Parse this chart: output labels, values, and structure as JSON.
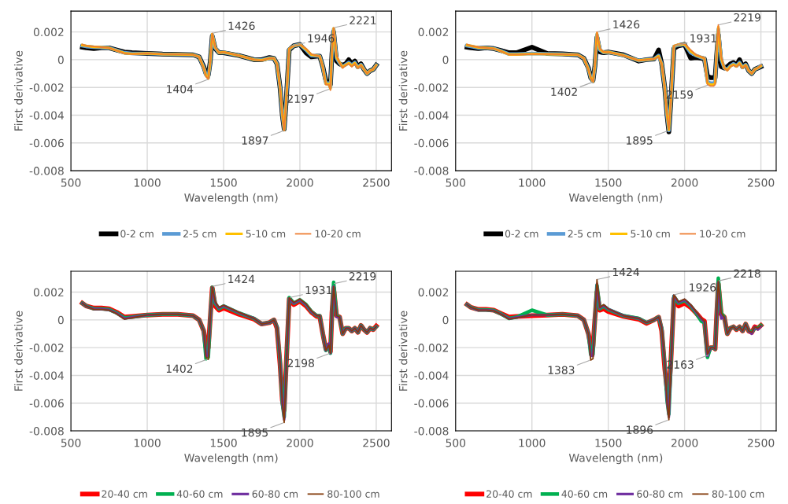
{
  "chart_data": [
    {
      "type": "line",
      "xlabel": "Wavelength (nm)",
      "ylabel": "First derivative",
      "xlim": [
        500,
        2600
      ],
      "xticks": [
        500,
        1000,
        1500,
        2000,
        2500
      ],
      "ylim": [
        -0.008,
        0.0035
      ],
      "yticks": [
        -0.008,
        -0.006,
        -0.004,
        -0.002,
        0,
        0.002
      ],
      "grid": true,
      "legend": "bottom",
      "x": [
        575,
        600,
        650,
        700,
        750,
        800,
        850,
        900,
        1000,
        1100,
        1200,
        1300,
        1340,
        1370,
        1385,
        1400,
        1412,
        1426,
        1445,
        1470,
        1500,
        1600,
        1700,
        1750,
        1800,
        1830,
        1850,
        1870,
        1885,
        1897,
        1910,
        1930,
        1960,
        2000,
        2040,
        2075,
        2110,
        2130,
        2150,
        2170,
        2190,
        2200,
        2210,
        2221,
        2240,
        2260,
        2280,
        2300,
        2320,
        2340,
        2360,
        2380,
        2400,
        2420,
        2440,
        2460,
        2480,
        2500
      ],
      "series": [
        {
          "name": "0-2 cm",
          "color": "#000000",
          "values": [
            0.0009,
            0.00085,
            0.0008,
            0.00085,
            0.00085,
            0.0007,
            0.00055,
            0.0005,
            0.00045,
            0.0004,
            0.00038,
            0.00035,
            0.0002,
            -0.0005,
            -0.001,
            -0.0011,
            -0.0002,
            0.0017,
            0.0008,
            0.0005,
            0.0005,
            0.0003,
            0.0,
            0.0,
            0.00015,
            0.0001,
            -0.0003,
            -0.002,
            -0.004,
            -0.005,
            -0.003,
            0.0007,
            0.001,
            0.0011,
            0.0005,
            0.0002,
            0.00025,
            0.00025,
            -0.0005,
            -0.0015,
            -0.0016,
            -0.0018,
            0.0004,
            0.002,
            -0.0001,
            -0.0003,
            -0.0004,
            -0.0003,
            0.0,
            -0.0003,
            -0.0001,
            -0.0005,
            -0.0003,
            -0.0007,
            -0.001,
            -0.0008,
            -0.0007,
            -0.0004
          ]
        },
        {
          "name": "2-5 cm",
          "color": "#5b9bd5",
          "values": [
            0.001,
            0.00095,
            0.0009,
            0.00088,
            0.00085,
            0.00068,
            0.0005,
            0.00045,
            0.00045,
            0.0004,
            0.00038,
            0.00035,
            0.0002,
            -0.00055,
            -0.0011,
            -0.0013,
            -0.0002,
            0.0018,
            0.00085,
            0.0005,
            0.00052,
            0.0003,
            0.0,
            -2e-05,
            0.00012,
            0.0001,
            -0.0003,
            -0.002,
            -0.004,
            -0.005,
            -0.003,
            0.00075,
            0.001,
            0.0011,
            0.0007,
            0.0003,
            0.00028,
            0.00025,
            -0.0005,
            -0.0017,
            -0.0017,
            -0.002,
            0.00045,
            0.0022,
            0.0001,
            -0.00025,
            -0.0005,
            -0.00035,
            -0.0002,
            -0.0004,
            -0.0002,
            -0.00055,
            -0.00035,
            -0.0007,
            -0.001,
            -0.0008,
            -0.0007,
            -0.0004
          ]
        },
        {
          "name": "5-10 cm",
          "color": "#ffc000",
          "values": [
            0.00105,
            0.001,
            0.00092,
            0.0009,
            0.00085,
            0.00066,
            0.00047,
            0.00042,
            0.00045,
            0.0004,
            0.00038,
            0.00035,
            0.0002,
            -0.00058,
            -0.00115,
            -0.00135,
            -0.0002,
            0.00185,
            0.00088,
            0.0005,
            0.00054,
            0.0003,
            0.0,
            -4e-05,
            0.0001,
            0.0001,
            -0.0003,
            -0.002,
            -0.004,
            -0.00505,
            -0.003,
            0.00078,
            0.001,
            0.0011,
            0.00075,
            0.00035,
            0.00029,
            0.00025,
            -0.0005,
            -0.00175,
            -0.00175,
            -0.0021,
            0.00048,
            0.00225,
            0.0002,
            -0.0002,
            -0.00055,
            -0.00038,
            -0.00025,
            -0.00045,
            -0.00025,
            -0.00058,
            -0.00038,
            -0.0007,
            -0.001,
            -0.0008,
            -0.0007,
            -0.0004
          ]
        },
        {
          "name": "10-20 cm",
          "color": "#ed7d31",
          "values": [
            0.0011,
            0.001,
            0.00095,
            0.0009,
            0.00085,
            0.00065,
            0.00045,
            0.0004,
            0.00045,
            0.0004,
            0.00038,
            0.00035,
            0.0002,
            -0.0006,
            -0.0012,
            -0.0014,
            -0.0002,
            0.0019,
            0.0009,
            0.0005,
            0.00055,
            0.0003,
            0.0,
            -5e-05,
            0.0001,
            0.0001,
            -0.0003,
            -0.002,
            -0.004,
            -0.0051,
            -0.003,
            0.0008,
            0.001,
            0.0011,
            0.0008,
            0.0004,
            0.0003,
            0.00025,
            -0.0005,
            -0.0018,
            -0.0018,
            -0.0022,
            0.0005,
            0.0023,
            0.0003,
            -0.0002,
            -0.0006,
            -0.0004,
            -0.0003,
            -0.0005,
            -0.0003,
            -0.0006,
            -0.0004,
            -0.0007,
            -0.001,
            -0.0008,
            -0.0007,
            -0.0004
          ]
        }
      ],
      "annotations": [
        {
          "text": "1426",
          "x": 1426,
          "y": 0.0019
        },
        {
          "text": "1404",
          "x": 1404,
          "y": -0.0014
        },
        {
          "text": "1897",
          "x": 1897,
          "y": -0.0051
        },
        {
          "text": "1946",
          "x": 1946,
          "y": 0.001
        },
        {
          "text": "2197",
          "x": 2197,
          "y": -0.0021
        },
        {
          "text": "2221",
          "x": 2221,
          "y": 0.0023
        }
      ]
    },
    {
      "type": "line",
      "xlabel": "Wavelength (nm)",
      "ylabel": "First derivative",
      "xlim": [
        500,
        2600
      ],
      "xticks": [
        500,
        1000,
        1500,
        2000,
        2500
      ],
      "ylim": [
        -0.008,
        0.0035
      ],
      "yticks": [
        -0.008,
        -0.006,
        -0.004,
        -0.002,
        0,
        0.002
      ],
      "grid": true,
      "legend": "bottom",
      "x": [
        575,
        600,
        650,
        700,
        750,
        800,
        850,
        900,
        1000,
        1100,
        1200,
        1300,
        1340,
        1370,
        1385,
        1400,
        1412,
        1426,
        1445,
        1470,
        1500,
        1600,
        1700,
        1750,
        1800,
        1830,
        1850,
        1870,
        1885,
        1897,
        1910,
        1930,
        1960,
        2000,
        2040,
        2075,
        2110,
        2130,
        2150,
        2170,
        2190,
        2200,
        2210,
        2221,
        2240,
        2260,
        2280,
        2300,
        2320,
        2340,
        2360,
        2380,
        2400,
        2420,
        2440,
        2460,
        2480,
        2500
      ],
      "series": [
        {
          "name": "0-2 cm",
          "color": "#000000",
          "values": [
            0.0009,
            0.00085,
            0.0008,
            0.00085,
            0.0008,
            0.00065,
            0.0005,
            0.0005,
            0.0009,
            0.00045,
            0.00042,
            0.00035,
            0.0001,
            -0.0006,
            -0.0013,
            -0.0015,
            -0.0005,
            0.0016,
            0.00055,
            0.0005,
            0.00055,
            0.00035,
            -0.0001,
            0.0,
            5e-05,
            0.0007,
            -0.0003,
            -0.002,
            -0.004,
            -0.0052,
            -0.003,
            0.0008,
            0.001,
            0.0011,
            0.0001,
            0.00015,
            0.0001,
            5e-05,
            -0.0012,
            -0.0013,
            -0.0013,
            -0.0013,
            0.0003,
            0.0018,
            -0.0005,
            -0.0006,
            -0.0005,
            -0.0003,
            -0.0002,
            -0.0004,
            0.0,
            -0.0005,
            -0.0003,
            -0.0008,
            -0.001,
            -0.0007,
            -0.0006,
            -0.0005
          ]
        },
        {
          "name": "2-5 cm",
          "color": "#5b9bd5",
          "values": [
            0.001,
            0.00095,
            0.00085,
            0.00085,
            0.0008,
            0.00062,
            0.0004,
            0.0004,
            0.00045,
            0.00042,
            0.0004,
            0.00035,
            0.0001,
            -0.00065,
            -0.0013,
            -0.00155,
            -0.0005,
            0.0018,
            0.0007,
            0.00052,
            0.00055,
            0.00032,
            -7e-05,
            0.0,
            5e-05,
            0.0003,
            -0.0003,
            -0.002,
            -0.004,
            -0.0051,
            -0.003,
            0.00095,
            0.00105,
            0.0011,
            0.0005,
            0.0003,
            0.00015,
            8e-05,
            -0.0016,
            -0.0017,
            -0.0017,
            -0.0016,
            0.0004,
            0.0022,
            0.0,
            -0.0006,
            -0.0007,
            -0.00045,
            -0.0003,
            -0.00045,
            -0.0002,
            -0.00055,
            -0.00035,
            -0.0008,
            -0.001,
            -0.0007,
            -0.0006,
            -0.00045
          ]
        },
        {
          "name": "5-10 cm",
          "color": "#ffc000",
          "values": [
            0.00105,
            0.001,
            0.00088,
            0.00085,
            0.0008,
            0.0006,
            0.00037,
            0.00037,
            0.00042,
            0.0004,
            0.00038,
            0.00035,
            0.0001,
            -0.00068,
            -0.0013,
            -0.00158,
            -0.0005,
            0.0019,
            0.00075,
            0.00054,
            0.00055,
            0.00031,
            -6e-05,
            0.0,
            5e-05,
            0.00025,
            -0.0003,
            -0.002,
            -0.004,
            -0.00505,
            -0.003,
            0.00098,
            0.00108,
            0.00112,
            0.0006,
            0.00032,
            0.00018,
            9e-05,
            -0.0017,
            -0.0018,
            -0.0018,
            -0.0017,
            0.00045,
            0.00235,
            0.0001,
            -0.0006,
            -0.00075,
            -0.00048,
            -0.00035,
            -0.00048,
            -0.00025,
            -0.00058,
            -0.00038,
            -0.0008,
            -0.001,
            -0.0007,
            -0.0006,
            -0.00045
          ]
        },
        {
          "name": "10-20 cm",
          "color": "#ed7d31",
          "values": [
            0.0011,
            0.001,
            0.0009,
            0.00085,
            0.0008,
            0.0006,
            0.00035,
            0.00035,
            0.0004,
            0.0004,
            0.00038,
            0.00035,
            0.0001,
            -0.0007,
            -0.0013,
            -0.0016,
            -0.0005,
            0.002,
            0.0008,
            0.00055,
            0.00055,
            0.0003,
            -5e-05,
            0.0,
            5e-05,
            0.0002,
            -0.0003,
            -0.002,
            -0.004,
            -0.005,
            -0.003,
            0.001,
            0.0011,
            0.00115,
            0.0007,
            0.00035,
            0.0002,
            0.0001,
            -0.0018,
            -0.0019,
            -0.0019,
            -0.0018,
            0.0005,
            0.0025,
            0.0002,
            -0.0006,
            -0.0008,
            -0.0005,
            -0.0004,
            -0.0005,
            -0.0003,
            -0.0006,
            -0.0004,
            -0.0008,
            -0.001,
            -0.0007,
            -0.0006,
            -0.0004
          ]
        }
      ],
      "annotations": [
        {
          "text": "1426",
          "x": 1426,
          "y": 0.002
        },
        {
          "text": "1402",
          "x": 1402,
          "y": -0.0016
        },
        {
          "text": "1895",
          "x": 1895,
          "y": -0.0051
        },
        {
          "text": "1931",
          "x": 1931,
          "y": 0.001
        },
        {
          "text": "2159",
          "x": 2159,
          "y": -0.0018
        },
        {
          "text": "2219",
          "x": 2219,
          "y": 0.0025
        }
      ]
    },
    {
      "type": "line",
      "xlabel": "Wavelength (nm)",
      "ylabel": "First derivative",
      "xlim": [
        500,
        2600
      ],
      "xticks": [
        500,
        1000,
        1500,
        2000,
        2500
      ],
      "ylim": [
        -0.008,
        0.0035
      ],
      "yticks": [
        -0.008,
        -0.006,
        -0.004,
        -0.002,
        0,
        0.002
      ],
      "grid": true,
      "legend": "bottom",
      "x": [
        575,
        600,
        650,
        700,
        750,
        800,
        850,
        900,
        1000,
        1100,
        1200,
        1300,
        1340,
        1370,
        1385,
        1400,
        1412,
        1426,
        1445,
        1470,
        1500,
        1600,
        1700,
        1750,
        1800,
        1830,
        1850,
        1870,
        1885,
        1897,
        1910,
        1930,
        1960,
        2000,
        2040,
        2075,
        2110,
        2130,
        2150,
        2170,
        2190,
        2200,
        2210,
        2221,
        2240,
        2260,
        2280,
        2300,
        2320,
        2340,
        2360,
        2380,
        2400,
        2420,
        2440,
        2460,
        2480,
        2500
      ],
      "series": [
        {
          "name": "20-40 cm",
          "color": "#ff0000",
          "values": [
            0.0012,
            0.001,
            0.00085,
            0.00085,
            0.0008,
            0.00055,
            0.0002,
            0.00025,
            0.00035,
            0.0004,
            0.0004,
            0.0003,
            0.0,
            -0.0008,
            -0.002,
            -0.002,
            0.0,
            0.0023,
            0.001,
            0.0007,
            0.00085,
            0.0004,
            5e-05,
            -0.0003,
            -0.0002,
            0.0,
            -0.0006,
            -0.0032,
            -0.0058,
            -0.0065,
            -0.0033,
            0.0015,
            0.0011,
            0.00135,
            0.001,
            0.00055,
            0.00025,
            0.00025,
            -0.001,
            -0.0021,
            -0.0018,
            -0.0023,
            0.0005,
            0.0023,
            0.0003,
            0.0002,
            -0.001,
            -0.0006,
            -0.0006,
            -0.0008,
            -0.0006,
            -0.0009,
            -0.0004,
            -0.0007,
            -0.0009,
            -0.0006,
            -0.0007,
            -0.00045
          ]
        },
        {
          "name": "40-60 cm",
          "color": "#00b050",
          "values": [
            0.0012,
            0.001,
            0.0008,
            0.0008,
            0.00075,
            0.0005,
            0.00015,
            0.0002,
            0.00035,
            0.0004,
            0.0004,
            0.0003,
            0.0,
            -0.0008,
            -0.0028,
            -0.0027,
            0.0,
            0.00235,
            0.0012,
            0.0008,
            0.001,
            0.0005,
            0.0001,
            -0.0003,
            -0.0002,
            0.0,
            -0.0005,
            -0.003,
            -0.006,
            -0.007,
            -0.0034,
            0.0016,
            0.0012,
            0.00145,
            0.0011,
            0.0006,
            0.0003,
            0.0003,
            -0.001,
            -0.0022,
            -0.0018,
            -0.0024,
            0.0005,
            0.0027,
            0.0003,
            0.0002,
            -0.001,
            -0.0006,
            -0.0006,
            -0.0008,
            -0.0006,
            -0.0009,
            -0.0004,
            -0.0007,
            -0.0009,
            -0.0006,
            -0.0007,
            -0.0005
          ]
        },
        {
          "name": "60-80 cm",
          "color": "#7030a0",
          "values": [
            0.0012,
            0.001,
            0.00078,
            0.00078,
            0.00072,
            0.00048,
            0.0001,
            0.00018,
            0.00035,
            0.0004,
            0.0004,
            0.0003,
            0.0,
            -0.0008,
            -0.0026,
            -0.0026,
            0.0,
            0.00235,
            0.00125,
            0.00085,
            0.00102,
            0.00052,
            0.0001,
            -0.0003,
            -0.0002,
            0.0,
            -0.0005,
            -0.003,
            -0.006,
            -0.0072,
            -0.00345,
            0.00155,
            0.0012,
            0.00145,
            0.0011,
            0.0006,
            0.0003,
            0.0003,
            -0.001,
            -0.0022,
            -0.0017,
            -0.0024,
            0.0005,
            0.0024,
            0.0002,
            0.0002,
            -0.001,
            -0.0006,
            -0.0006,
            -0.0008,
            -0.0006,
            -0.0009,
            -0.0004,
            -0.0007,
            -0.0009,
            -0.0006,
            -0.0007,
            -0.0005
          ]
        },
        {
          "name": "80-100 cm",
          "color": "#843c0c",
          "values": [
            0.0012,
            0.001,
            0.00075,
            0.00075,
            0.0007,
            0.00045,
            5e-05,
            0.00015,
            0.00035,
            0.0004,
            0.0004,
            0.0003,
            0.0,
            -0.0008,
            -0.0027,
            -0.00285,
            0.0,
            0.0024,
            0.0013,
            0.0009,
            0.00105,
            0.00055,
            0.0001,
            -0.0003,
            -0.0002,
            0.0,
            -0.0005,
            -0.003,
            -0.006,
            -0.0074,
            -0.0035,
            0.0016,
            0.00125,
            0.0015,
            0.00115,
            0.00065,
            0.0003,
            0.0003,
            -0.001,
            -0.0022,
            -0.0018,
            -0.0024,
            0.0005,
            0.0024,
            0.0003,
            0.0002,
            -0.001,
            -0.0006,
            -0.0006,
            -0.0008,
            -0.0006,
            -0.0009,
            -0.0004,
            -0.0007,
            -0.0009,
            -0.0006,
            -0.0007,
            -0.0005
          ]
        }
      ],
      "annotations": [
        {
          "text": "1424",
          "x": 1424,
          "y": 0.0024
        },
        {
          "text": "1402",
          "x": 1402,
          "y": -0.0028
        },
        {
          "text": "1895",
          "x": 1895,
          "y": -0.0074
        },
        {
          "text": "1931",
          "x": 1931,
          "y": 0.0016
        },
        {
          "text": "2198",
          "x": 2198,
          "y": -0.0024
        },
        {
          "text": "2219",
          "x": 2219,
          "y": 0.0026
        }
      ]
    },
    {
      "type": "line",
      "xlabel": "Wavelength (nm)",
      "ylabel": "First derivative",
      "xlim": [
        500,
        2600
      ],
      "xticks": [
        500,
        1000,
        1500,
        2000,
        2500
      ],
      "ylim": [
        -0.008,
        0.0035
      ],
      "yticks": [
        -0.008,
        -0.006,
        -0.004,
        -0.002,
        0,
        0.002
      ],
      "grid": true,
      "legend": "bottom",
      "x": [
        575,
        600,
        650,
        700,
        750,
        800,
        850,
        900,
        1000,
        1100,
        1200,
        1300,
        1340,
        1370,
        1385,
        1400,
        1412,
        1426,
        1445,
        1470,
        1500,
        1600,
        1700,
        1750,
        1800,
        1830,
        1850,
        1870,
        1885,
        1897,
        1910,
        1930,
        1960,
        2000,
        2040,
        2075,
        2110,
        2130,
        2150,
        2170,
        2190,
        2200,
        2210,
        2221,
        2240,
        2260,
        2280,
        2300,
        2320,
        2340,
        2360,
        2380,
        2400,
        2420,
        2440,
        2460,
        2480,
        2500
      ],
      "series": [
        {
          "name": "20-40 cm",
          "color": "#ff0000",
          "values": [
            0.0011,
            0.0009,
            0.00075,
            0.00075,
            0.0007,
            0.00045,
            0.0002,
            0.00025,
            0.0003,
            0.00035,
            0.0004,
            0.0003,
            0.0,
            -0.001,
            -0.0019,
            -0.0019,
            0.0,
            0.002,
            0.0007,
            0.0008,
            0.0006,
            0.00025,
            5e-05,
            -0.00025,
            0.0,
            0.0002,
            -0.0008,
            -0.0035,
            -0.005,
            -0.0053,
            -0.003,
            0.0015,
            0.001,
            0.0012,
            0.0009,
            0.0005,
            5e-05,
            -0.0001,
            -0.0024,
            -0.002,
            -0.002,
            -0.0021,
            0.0003,
            0.0026,
            0.0004,
            0.0002,
            -0.001,
            -0.0006,
            -0.0005,
            -0.0007,
            -0.0005,
            -0.0008,
            -0.0003,
            -0.0008,
            -0.0009,
            -0.0005,
            -0.0006,
            -0.0004
          ]
        },
        {
          "name": "40-60 cm",
          "color": "#00b050",
          "values": [
            0.0011,
            0.0009,
            0.00072,
            0.00072,
            0.00068,
            0.00042,
            0.0001,
            0.0002,
            0.0007,
            0.00035,
            0.0004,
            0.0003,
            0.0,
            -0.001,
            -0.0025,
            -0.0025,
            0.0,
            0.0025,
            0.0008,
            0.001,
            0.00075,
            0.0003,
            0.0001,
            -0.0002,
            0.0,
            0.0002,
            -0.0006,
            -0.0032,
            -0.0058,
            -0.0068,
            -0.0033,
            0.0017,
            0.0012,
            0.0014,
            0.001,
            0.0005,
            -0.0001,
            -0.0002,
            -0.0027,
            -0.002,
            -0.002,
            -0.0021,
            0.0003,
            0.003,
            0.0005,
            0.0002,
            -0.001,
            -0.0006,
            -0.0005,
            -0.0007,
            -0.0005,
            -0.0008,
            -0.0003,
            -0.0008,
            -0.0009,
            -0.0006,
            -0.0006,
            -0.0004
          ]
        },
        {
          "name": "60-80 cm",
          "color": "#7030a0",
          "values": [
            0.0011,
            0.0009,
            0.0007,
            0.0007,
            0.00066,
            0.00041,
            8e-05,
            0.00018,
            0.00035,
            0.00035,
            0.0004,
            0.0003,
            0.0,
            -0.001,
            -0.0026,
            -0.0026,
            0.0,
            0.0026,
            0.00085,
            0.00105,
            0.00078,
            0.0003,
            0.0001,
            -0.0002,
            0.0,
            0.0002,
            -0.00055,
            -0.0031,
            -0.0059,
            -0.007,
            -0.0034,
            0.00175,
            0.00125,
            0.00145,
            0.00105,
            0.00055,
            5e-05,
            -0.00015,
            -0.0026,
            -0.002,
            -0.002,
            -0.0021,
            0.0003,
            0.0027,
            0.0001,
            0.0002,
            -0.001,
            -0.0006,
            -0.0005,
            -0.0007,
            -0.0005,
            -0.0008,
            -0.0003,
            -0.0008,
            -0.001,
            -0.0005,
            -0.0007,
            -0.00045
          ]
        },
        {
          "name": "80-100 cm",
          "color": "#843c0c",
          "values": [
            0.0011,
            0.0009,
            0.0007,
            0.0007,
            0.00065,
            0.0004,
            5e-05,
            0.00015,
            0.00035,
            0.00035,
            0.0004,
            0.0003,
            0.0,
            -0.001,
            -0.0029,
            -0.0028,
            0.0,
            0.0029,
            0.0009,
            0.0011,
            0.0008,
            0.0003,
            0.0001,
            -0.0002,
            0.0,
            0.0002,
            -0.0005,
            -0.003,
            -0.006,
            -0.0072,
            -0.0035,
            0.0018,
            0.0013,
            0.0015,
            0.0011,
            0.0006,
            0.0001,
            -0.0001,
            -0.0025,
            -0.002,
            -0.002,
            -0.0021,
            0.0003,
            0.0028,
            0.0005,
            0.0002,
            -0.001,
            -0.0006,
            -0.0005,
            -0.0007,
            -0.0005,
            -0.0008,
            -0.0003,
            -0.0008,
            -0.0009,
            -0.0005,
            -0.0006,
            -0.0004
          ]
        }
      ],
      "annotations": [
        {
          "text": "1424",
          "x": 1424,
          "y": 0.0029
        },
        {
          "text": "1383",
          "x": 1383,
          "y": -0.0029
        },
        {
          "text": "1896",
          "x": 1896,
          "y": -0.0072
        },
        {
          "text": "1926",
          "x": 1926,
          "y": 0.0018
        },
        {
          "text": "2163",
          "x": 2163,
          "y": -0.0025
        },
        {
          "text": "2218",
          "x": 2218,
          "y": 0.0028
        }
      ]
    }
  ]
}
